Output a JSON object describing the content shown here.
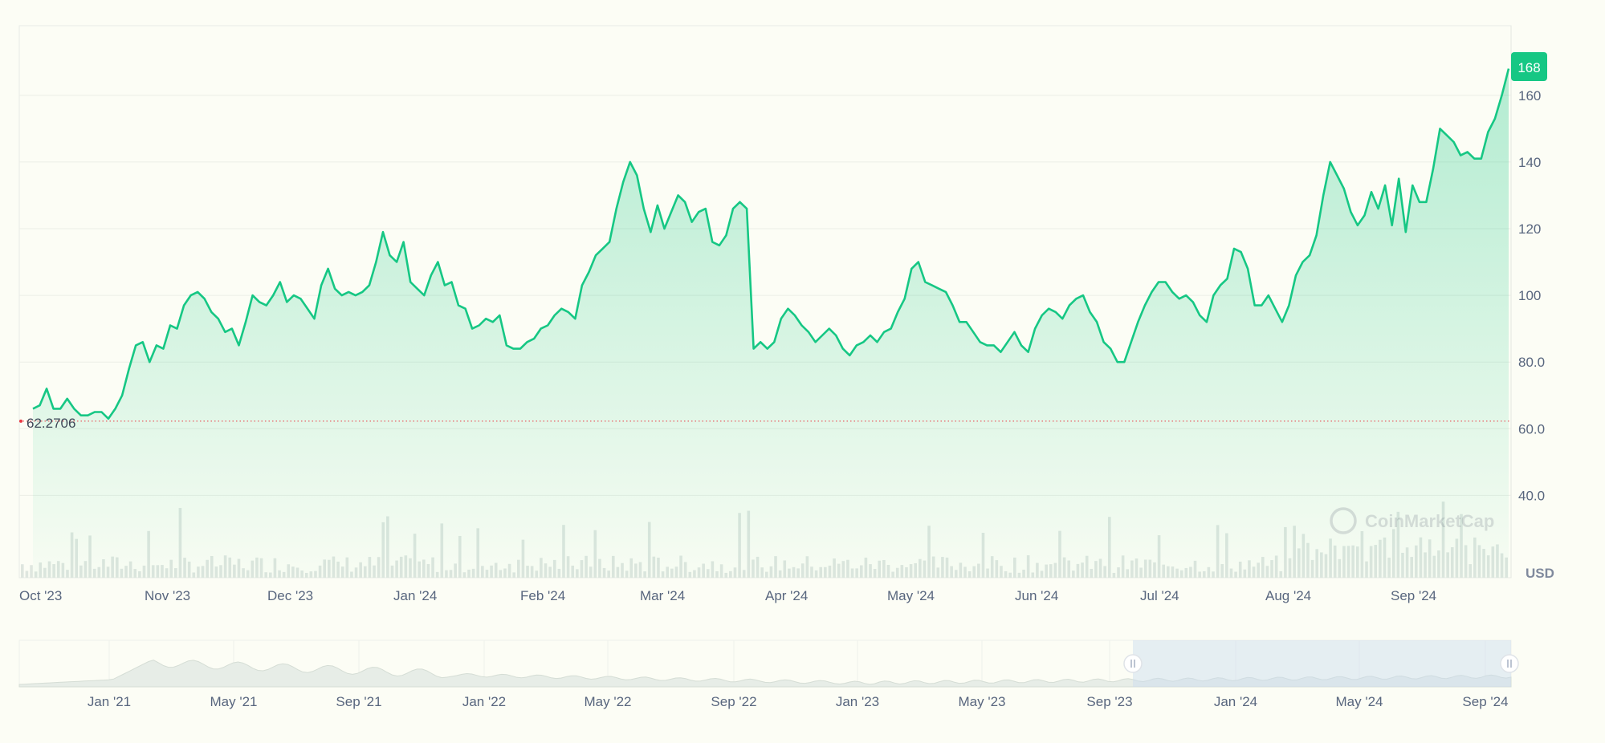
{
  "chart_data": {
    "type": "area",
    "title": "",
    "xlabel": "",
    "ylabel": "",
    "currency_label": "USD",
    "watermark": "CoinMarketCap",
    "ylim": [
      20,
      180
    ],
    "yticks": [
      "40.0",
      "60.0",
      "80.0",
      "100",
      "120",
      "140",
      "160"
    ],
    "ytick_values": [
      40,
      60,
      80,
      100,
      120,
      140,
      160
    ],
    "xticks": [
      "Oct '23",
      "Nov '23",
      "Dec '23",
      "Jan '24",
      "Feb '24",
      "Mar '24",
      "Apr '24",
      "May '24",
      "Jun '24",
      "Jul '24",
      "Aug '24",
      "Sep '24"
    ],
    "current_price_label": "168",
    "baseline_label": "62.2706",
    "baseline_value": 62.2706,
    "line_color": "#16c784",
    "baseline_color": "#ea3943",
    "series": [
      {
        "values": [
          66,
          67,
          72,
          66,
          66,
          69,
          66,
          64,
          64,
          65,
          65,
          63,
          66,
          70,
          78,
          85,
          86,
          80,
          85,
          84,
          91,
          90,
          97,
          100,
          101,
          99,
          95,
          93,
          89,
          90,
          85,
          92,
          100,
          98,
          97,
          100,
          104,
          98,
          100,
          99,
          96,
          93,
          103,
          108,
          102,
          100,
          101,
          100,
          101,
          103,
          110,
          119,
          112,
          110,
          116,
          104,
          102,
          100,
          106,
          110,
          103,
          104,
          97,
          96,
          90,
          91,
          93,
          92,
          94,
          85,
          84,
          84,
          86,
          87,
          90,
          91,
          94,
          96,
          95,
          93,
          103,
          107,
          112,
          114,
          116,
          126,
          134,
          140,
          136,
          126,
          119,
          127,
          120,
          125,
          130,
          128,
          122,
          125,
          126,
          116,
          115,
          118,
          126,
          128,
          126,
          84,
          86,
          84,
          86,
          93,
          96,
          94,
          91,
          89,
          86,
          88,
          90,
          88,
          84,
          82,
          85,
          86,
          88,
          86,
          89,
          90,
          95,
          99,
          108,
          110,
          104,
          103,
          102,
          101,
          97,
          92,
          92,
          89,
          86,
          85,
          85,
          83,
          86,
          89,
          85,
          83,
          90,
          94,
          96,
          95,
          93,
          97,
          99,
          100,
          95,
          92,
          86,
          84,
          80,
          80,
          86,
          92,
          97,
          101,
          104,
          104,
          101,
          99,
          100,
          98,
          94,
          92,
          100,
          103,
          105,
          114,
          113,
          108,
          97,
          97,
          100,
          96,
          92,
          97,
          106,
          110,
          112,
          118,
          130,
          140,
          136,
          132,
          125,
          121,
          124,
          131,
          126,
          133,
          121,
          135,
          119,
          133,
          128,
          128,
          138,
          150,
          148,
          146,
          142,
          143,
          141,
          141,
          149,
          153,
          160,
          168
        ]
      }
    ],
    "navigator_xticks": [
      "Jan '21",
      "May '21",
      "Sep '21",
      "Jan '22",
      "May '22",
      "Sep '22",
      "Jan '23",
      "May '23",
      "Sep '23",
      "Jan '24",
      "May '24",
      "Sep '24"
    ]
  }
}
